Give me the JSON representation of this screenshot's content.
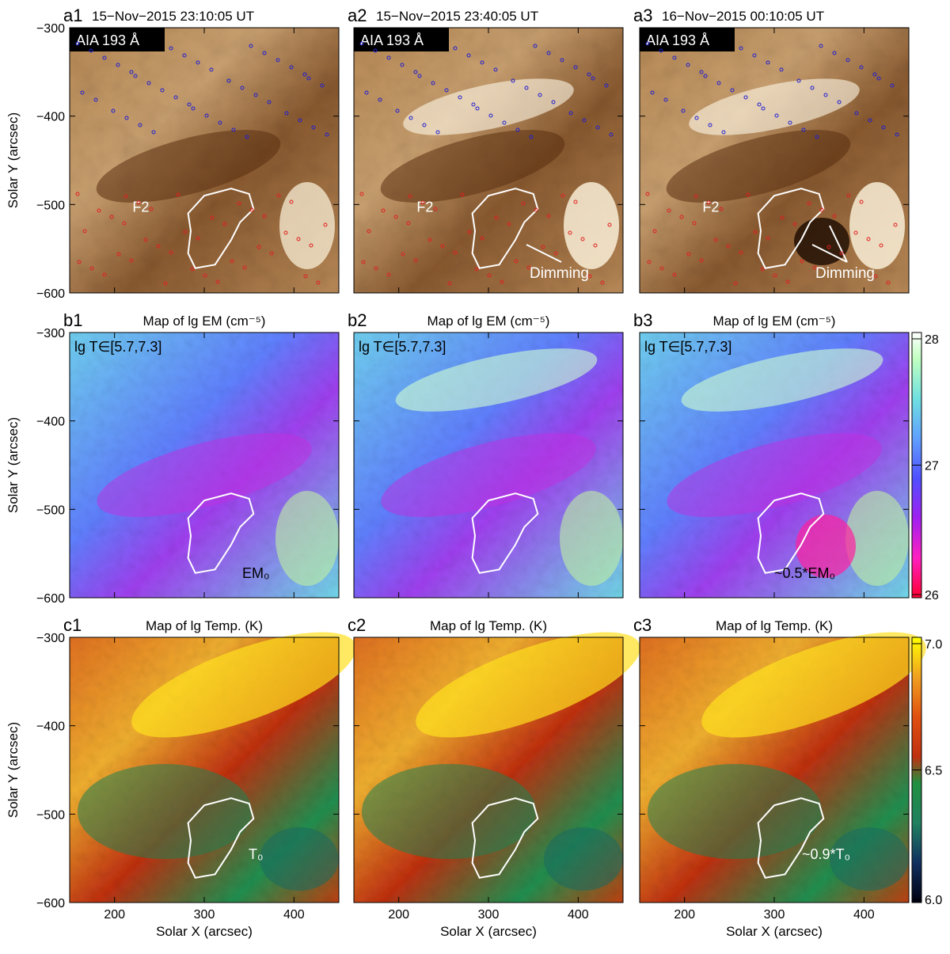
{
  "rows": [
    {
      "id": "a",
      "panels": [
        {
          "label": "a1",
          "title": "15−Nov−2015 23:10:05 UT",
          "badge": "AIA 193 Å",
          "fil": "F2",
          "note": ""
        },
        {
          "label": "a2",
          "title": "15−Nov−2015 23:40:05 UT",
          "badge": "AIA 193 Å",
          "fil": "F2",
          "note": "Dimming"
        },
        {
          "label": "a3",
          "title": "16−Nov−2015 00:10:05 UT",
          "badge": "AIA 193 Å",
          "fil": "F2",
          "note": "Dimming"
        }
      ]
    },
    {
      "id": "b",
      "panels": [
        {
          "label": "b1",
          "title": "Map of lg EM (cm⁻⁵)",
          "range": "lg T∈[5.7,7.3]",
          "note": "EM₀"
        },
        {
          "label": "b2",
          "title": "Map of lg EM (cm⁻⁵)",
          "range": "lg T∈[5.7,7.3]",
          "note": ""
        },
        {
          "label": "b3",
          "title": "Map of lg EM (cm⁻⁵)",
          "range": "lg T∈[5.7,7.3]",
          "note": "~0.5*EM₀"
        }
      ],
      "colorbar_ticks": [
        "28",
        "27",
        "26"
      ],
      "colorbar_colors": [
        "#ff0030",
        "#ff20c0",
        "#a020f0",
        "#5050ff",
        "#60a0ff",
        "#70e0e0",
        "#c0ffc0",
        "#ffffff"
      ]
    },
    {
      "id": "c",
      "panels": [
        {
          "label": "c1",
          "title": "Map of lg Temp. (K)",
          "note": "T₀"
        },
        {
          "label": "c2",
          "title": "Map of lg Temp. (K)",
          "note": ""
        },
        {
          "label": "c3",
          "title": "Map of lg Temp. (K)",
          "note": "~0.9*T₀"
        }
      ],
      "colorbar_ticks": [
        "7.0",
        "6.5",
        "6.0"
      ],
      "colorbar_colors": [
        "#000010",
        "#103060",
        "#208060",
        "#209040",
        "#c03010",
        "#e05010",
        "#f0a020",
        "#ffff00"
      ]
    }
  ],
  "axes": {
    "xlabel": "Solar X (arcsec)",
    "ylabel": "Solar Y (arcsec)",
    "xticks": [
      "200",
      "300",
      "400"
    ],
    "yticks": [
      "−300",
      "−400",
      "−500",
      "−600"
    ]
  },
  "colors": {
    "contour_pos": "#e02020",
    "contour_neg": "#2020d0",
    "region": "#ffffff"
  }
}
